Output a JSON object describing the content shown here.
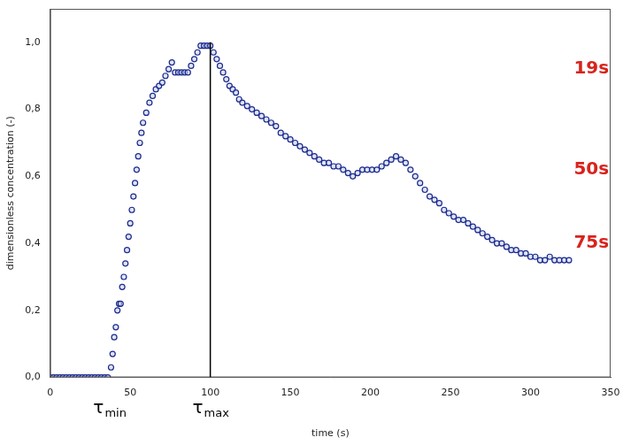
{
  "chart_data": {
    "type": "scatter",
    "x_label": "time (s)",
    "y_label": "dimensionless concentration (-)",
    "xlim": [
      0,
      350
    ],
    "ylim": [
      0,
      1.1
    ],
    "xticks": [
      0,
      50,
      100,
      150,
      200,
      250,
      300,
      350
    ],
    "yticks": [
      {
        "value": 0,
        "label": "0,0"
      },
      {
        "value": 0.2,
        "label": "0,2"
      },
      {
        "value": 0.4,
        "label": "0,4"
      },
      {
        "value": 0.6,
        "label": "0,6"
      },
      {
        "value": 0.8,
        "label": "0,8"
      },
      {
        "value": 1.0,
        "label": "1,0"
      }
    ],
    "grid": false,
    "color": "#1c2a8c",
    "marker": "circle",
    "x": [
      0,
      2,
      4,
      6,
      8,
      10,
      12,
      14,
      16,
      18,
      20,
      22,
      24,
      26,
      28,
      30,
      32,
      34,
      36,
      38,
      39,
      40,
      41,
      42,
      43,
      44,
      45,
      46,
      47,
      48,
      49,
      50,
      51,
      52,
      53,
      54,
      55,
      56,
      57,
      58,
      60,
      62,
      64,
      66,
      68,
      70,
      72,
      74,
      76,
      78,
      80,
      82,
      84,
      86,
      88,
      90,
      92,
      94,
      96,
      98,
      100,
      102,
      104,
      106,
      108,
      110,
      112,
      114,
      116,
      118,
      120,
      123,
      126,
      129,
      132,
      135,
      138,
      141,
      144,
      147,
      150,
      153,
      156,
      159,
      162,
      165,
      168,
      171,
      174,
      177,
      180,
      183,
      186,
      189,
      192,
      195,
      198,
      201,
      204,
      207,
      210,
      213,
      216,
      219,
      222,
      225,
      228,
      231,
      234,
      237,
      240,
      243,
      246,
      249,
      252,
      255,
      258,
      261,
      264,
      267,
      270,
      273,
      276,
      279,
      282,
      285,
      288,
      291,
      294,
      297,
      300,
      303,
      306,
      309,
      312,
      315,
      318,
      321,
      324
    ],
    "values": [
      0,
      0,
      0,
      0,
      0,
      0,
      0,
      0,
      0,
      0,
      0,
      0,
      0,
      0,
      0,
      0,
      0,
      0,
      0,
      0.03,
      0.07,
      0.12,
      0.15,
      0.2,
      0.22,
      0.22,
      0.27,
      0.3,
      0.34,
      0.38,
      0.42,
      0.46,
      0.5,
      0.54,
      0.58,
      0.62,
      0.66,
      0.7,
      0.73,
      0.76,
      0.79,
      0.82,
      0.84,
      0.86,
      0.87,
      0.88,
      0.9,
      0.92,
      0.94,
      0.91,
      0.91,
      0.91,
      0.91,
      0.91,
      0.93,
      0.95,
      0.97,
      0.99,
      0.99,
      0.99,
      0.99,
      0.97,
      0.95,
      0.93,
      0.91,
      0.89,
      0.87,
      0.86,
      0.85,
      0.83,
      0.82,
      0.81,
      0.8,
      0.79,
      0.78,
      0.77,
      0.76,
      0.75,
      0.73,
      0.72,
      0.71,
      0.7,
      0.69,
      0.68,
      0.67,
      0.66,
      0.65,
      0.64,
      0.64,
      0.63,
      0.63,
      0.62,
      0.61,
      0.6,
      0.61,
      0.62,
      0.62,
      0.62,
      0.62,
      0.63,
      0.64,
      0.65,
      0.66,
      0.65,
      0.64,
      0.62,
      0.6,
      0.58,
      0.56,
      0.54,
      0.53,
      0.52,
      0.5,
      0.49,
      0.48,
      0.47,
      0.47,
      0.46,
      0.45,
      0.44,
      0.43,
      0.42,
      0.41,
      0.4,
      0.4,
      0.39,
      0.38,
      0.38,
      0.37,
      0.37,
      0.36,
      0.36,
      0.35,
      0.35,
      0.36,
      0.35,
      0.35,
      0.35,
      0.35
    ],
    "reference_line": {
      "x": 100,
      "y_from": 0,
      "y_to": 1.0
    },
    "annotations": [
      {
        "text": "19s",
        "x": 338,
        "y": 0.92,
        "color": "#d8231c"
      },
      {
        "text": "50s",
        "x": 338,
        "y": 0.62,
        "color": "#d8231c"
      },
      {
        "text": "75s",
        "x": 338,
        "y": 0.4,
        "color": "#d8231c"
      }
    ],
    "axis_marks": [
      {
        "text": "τ",
        "sub": "min",
        "x": 37
      },
      {
        "text": "τ",
        "sub": "max",
        "x": 100
      }
    ]
  }
}
